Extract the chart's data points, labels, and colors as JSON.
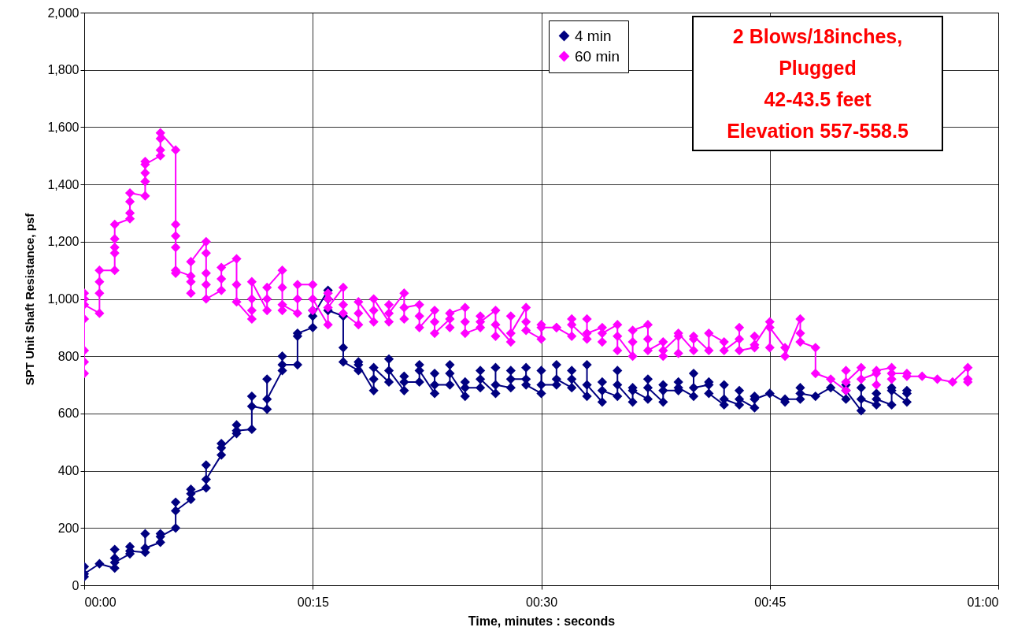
{
  "chart_data": {
    "type": "line",
    "xlabel": "Time, minutes : seconds",
    "ylabel": "SPT Unit Shaft Resistance, psf",
    "xlim": [
      0,
      60
    ],
    "xticks": [
      {
        "value": 0,
        "label": "00:00"
      },
      {
        "value": 15,
        "label": "00:15"
      },
      {
        "value": 30,
        "label": "00:30"
      },
      {
        "value": 45,
        "label": "00:45"
      },
      {
        "value": 60,
        "label": "01:00"
      }
    ],
    "ylim": [
      0,
      2000
    ],
    "yticks": [
      0,
      200,
      400,
      600,
      800,
      {
        "value": 1000,
        "label": "1,000"
      },
      {
        "value": 1200,
        "label": "1,200"
      },
      {
        "value": 1400,
        "label": "1,400"
      },
      {
        "value": 1600,
        "label": "1,600"
      },
      {
        "value": 1800,
        "label": "1,800"
      },
      {
        "value": 2000,
        "label": "2,000"
      }
    ],
    "grid": true,
    "legend": "top right",
    "marker": "diamond",
    "line_style": "solid",
    "annotations": [
      "2 Blows/18inches,",
      "Plugged",
      "42-43.5 feet",
      "Elevation 557-558.5"
    ],
    "series": [
      {
        "name": "4 min",
        "color": "#000080",
        "x": [
          0,
          0,
          0,
          1,
          2,
          2,
          2,
          2,
          3,
          3,
          3,
          4,
          4,
          4,
          5,
          5,
          5,
          6,
          6,
          6,
          7,
          7,
          7,
          8,
          8,
          8,
          9,
          9,
          9,
          10,
          10,
          10,
          11,
          11,
          11,
          12,
          12,
          12,
          13,
          13,
          13,
          14,
          14,
          14,
          15,
          15,
          15,
          16,
          16,
          16,
          17,
          17,
          17,
          18,
          18,
          18,
          19,
          19,
          19,
          20,
          20,
          20,
          21,
          21,
          21,
          22,
          22,
          22,
          23,
          23,
          23,
          24,
          24,
          24,
          25,
          25,
          25,
          26,
          26,
          26,
          27,
          27,
          27,
          28,
          28,
          28,
          29,
          29,
          29,
          30,
          30,
          30,
          31,
          31,
          31,
          32,
          32,
          32,
          33,
          33,
          33,
          34,
          34,
          34,
          35,
          35,
          35,
          36,
          36,
          36,
          37,
          37,
          37,
          38,
          38,
          38,
          39,
          39,
          39,
          40,
          40,
          40,
          41,
          41,
          41,
          42,
          42,
          42,
          43,
          43,
          43,
          44,
          44,
          44,
          45,
          46,
          46,
          47,
          47,
          47,
          48,
          49,
          50,
          50,
          50,
          51,
          51,
          51,
          52,
          52,
          52,
          53,
          53,
          53,
          54,
          54,
          54
        ],
        "values": [
          30,
          65,
          40,
          75,
          60,
          95,
          125,
          80,
          110,
          135,
          120,
          115,
          180,
          130,
          150,
          180,
          170,
          200,
          290,
          260,
          300,
          335,
          320,
          340,
          420,
          370,
          455,
          495,
          480,
          530,
          560,
          540,
          545,
          660,
          625,
          615,
          720,
          650,
          750,
          800,
          770,
          770,
          870,
          880,
          900,
          960,
          940,
          1030,
          1000,
          960,
          940,
          830,
          780,
          750,
          780,
          770,
          680,
          720,
          760,
          710,
          790,
          750,
          680,
          730,
          710,
          710,
          770,
          750,
          670,
          740,
          700,
          700,
          770,
          740,
          660,
          710,
          690,
          690,
          750,
          720,
          670,
          760,
          700,
          690,
          750,
          720,
          720,
          760,
          700,
          670,
          750,
          700,
          700,
          770,
          720,
          690,
          750,
          720,
          660,
          770,
          700,
          640,
          710,
          680,
          660,
          750,
          700,
          640,
          690,
          680,
          650,
          720,
          690,
          640,
          700,
          680,
          680,
          710,
          690,
          660,
          740,
          690,
          700,
          710,
          670,
          630,
          700,
          650,
          630,
          680,
          650,
          620,
          660,
          650,
          670,
          640,
          650,
          650,
          690,
          670,
          660,
          690,
          650,
          700,
          680,
          610,
          690,
          650,
          630,
          670,
          650,
          630,
          690,
          680,
          640,
          680,
          670
        ]
      },
      {
        "name": "60 min",
        "color": "#ff00ff",
        "x": [
          0,
          0,
          0,
          0,
          0,
          0,
          0,
          1,
          1,
          1,
          1,
          2,
          2,
          2,
          2,
          2,
          3,
          3,
          3,
          3,
          4,
          4,
          4,
          4,
          4,
          5,
          5,
          5,
          5,
          6,
          6,
          6,
          6,
          6,
          6,
          7,
          7,
          7,
          7,
          8,
          8,
          8,
          8,
          8,
          9,
          9,
          9,
          10,
          10,
          10,
          11,
          11,
          11,
          11,
          12,
          12,
          12,
          13,
          13,
          13,
          13,
          14,
          14,
          14,
          15,
          15,
          15,
          16,
          16,
          16,
          16,
          17,
          17,
          17,
          18,
          18,
          18,
          19,
          19,
          19,
          20,
          20,
          20,
          21,
          21,
          21,
          22,
          22,
          22,
          23,
          23,
          23,
          24,
          24,
          24,
          25,
          25,
          25,
          26,
          26,
          26,
          27,
          27,
          27,
          28,
          28,
          28,
          29,
          29,
          29,
          30,
          30,
          30,
          31,
          31,
          32,
          32,
          32,
          33,
          33,
          33,
          34,
          34,
          34,
          35,
          35,
          35,
          36,
          36,
          36,
          37,
          37,
          37,
          38,
          38,
          38,
          39,
          39,
          39,
          40,
          40,
          40,
          41,
          41,
          42,
          42,
          43,
          43,
          43,
          44,
          44,
          44,
          45,
          45,
          45,
          46,
          46,
          47,
          47,
          47,
          48,
          48,
          49,
          50,
          50,
          50,
          51,
          51,
          52,
          52,
          52,
          53,
          53,
          53,
          54,
          54,
          55,
          56,
          57,
          58,
          58,
          58
        ],
        "values": [
          740,
          820,
          780,
          930,
          1000,
          1020,
          980,
          950,
          1020,
          1060,
          1100,
          1100,
          1160,
          1210,
          1180,
          1260,
          1280,
          1300,
          1340,
          1370,
          1360,
          1410,
          1440,
          1480,
          1470,
          1500,
          1520,
          1560,
          1580,
          1520,
          1260,
          1220,
          1180,
          1090,
          1100,
          1080,
          1020,
          1060,
          1130,
          1200,
          1160,
          1090,
          1050,
          1000,
          1030,
          1070,
          1110,
          1140,
          1050,
          990,
          930,
          960,
          1000,
          1060,
          960,
          1000,
          1040,
          1100,
          1040,
          960,
          980,
          950,
          1000,
          1050,
          1050,
          960,
          1000,
          910,
          1000,
          1020,
          970,
          1040,
          980,
          950,
          910,
          950,
          990,
          920,
          960,
          1000,
          920,
          980,
          950,
          1020,
          930,
          970,
          980,
          940,
          900,
          960,
          920,
          880,
          930,
          900,
          950,
          970,
          920,
          880,
          900,
          940,
          920,
          960,
          870,
          910,
          850,
          940,
          880,
          970,
          920,
          890,
          860,
          910,
          900,
          900,
          900,
          870,
          930,
          910,
          860,
          930,
          880,
          900,
          850,
          880,
          910,
          820,
          870,
          800,
          850,
          890,
          910,
          860,
          820,
          850,
          800,
          820,
          870,
          810,
          880,
          820,
          860,
          870,
          820,
          880,
          850,
          820,
          860,
          900,
          820,
          830,
          870,
          840,
          920,
          830,
          900,
          830,
          800,
          930,
          880,
          850,
          830,
          740,
          720,
          680,
          750,
          710,
          760,
          720,
          740,
          700,
          750,
          760,
          720,
          740,
          740,
          730,
          730,
          720,
          710,
          760,
          720,
          710
        ]
      }
    ]
  }
}
